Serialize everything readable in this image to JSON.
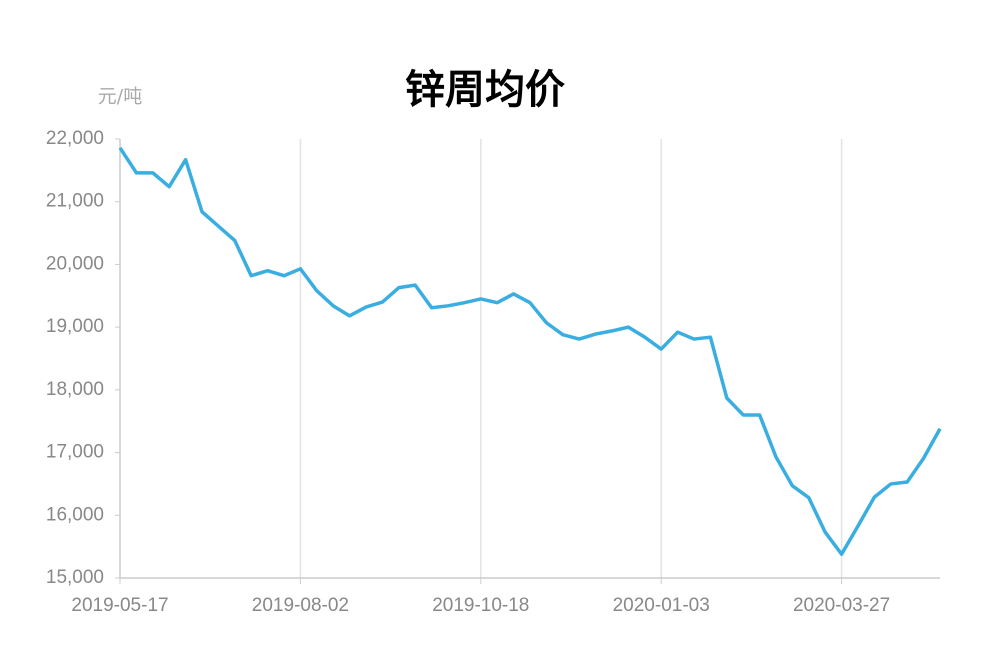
{
  "chart_data": {
    "type": "line",
    "title": "锌周均价",
    "y_label": "元/吨",
    "categories": [
      "2019-05-17",
      null,
      null,
      null,
      null,
      null,
      null,
      null,
      null,
      null,
      null,
      "2019-08-02",
      null,
      null,
      null,
      null,
      null,
      null,
      null,
      null,
      null,
      null,
      "2019-10-18",
      null,
      null,
      null,
      null,
      null,
      null,
      null,
      null,
      null,
      null,
      "2020-01-03",
      null,
      null,
      null,
      null,
      null,
      null,
      null,
      null,
      null,
      null,
      "2020-03-27",
      null,
      null,
      null,
      null,
      null,
      null
    ],
    "series": [
      {
        "name": "锌周均价",
        "color": "#3aaee0",
        "values": [
          21860,
          21460,
          21460,
          21240,
          21670,
          20840,
          20610,
          20380,
          19820,
          19900,
          19820,
          19930,
          19580,
          19340,
          19180,
          19320,
          19400,
          19630,
          19670,
          19310,
          19340,
          19390,
          19450,
          19390,
          19530,
          19390,
          19070,
          18880,
          18810,
          18890,
          18940,
          19000,
          18840,
          18650,
          18920,
          18810,
          18840,
          17870,
          17600,
          17600,
          16930,
          16470,
          16280,
          15730,
          15380,
          15830,
          16290,
          16500,
          16530,
          16910,
          17380
        ]
      }
    ],
    "ylim": [
      15000,
      22000
    ],
    "yticks": [
      {
        "value": 15000,
        "label": "15,000"
      },
      {
        "value": 16000,
        "label": "16,000"
      },
      {
        "value": 17000,
        "label": "17,000"
      },
      {
        "value": 18000,
        "label": "18,000"
      },
      {
        "value": 19000,
        "label": "19,000"
      },
      {
        "value": 20000,
        "label": "20,000"
      },
      {
        "value": 21000,
        "label": "21,000"
      },
      {
        "value": 22000,
        "label": "22,000"
      }
    ],
    "grid": true
  }
}
